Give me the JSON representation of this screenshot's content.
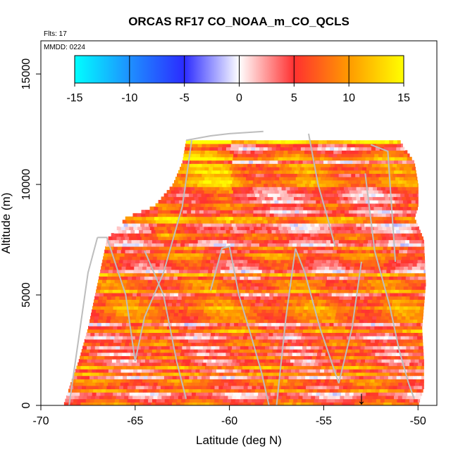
{
  "chart_data": {
    "type": "heatmap",
    "title": "ORCAS RF17 CO_NOAA_m_CO_QCLS",
    "subtitle": "Flts: 17",
    "annotation": "MMDD: 0224",
    "xlabel": "Latitude (deg N)",
    "ylabel": "Altitude (m)",
    "xlim": [
      -70,
      -49
    ],
    "ylim": [
      0,
      16500
    ],
    "x_ticks": [
      -70,
      -65,
      -60,
      -55,
      -50
    ],
    "y_ticks": [
      0,
      5000,
      10000,
      15000
    ],
    "grid": false,
    "colorbar": {
      "placement": "top-inside",
      "range": [
        -15,
        15
      ],
      "ticks": [
        -15,
        -10,
        -5,
        0,
        5,
        10,
        15
      ],
      "colors": [
        "#00ffff",
        "#1e90ff",
        "#2b2bff",
        "#ffffff",
        "#ff3030",
        "#ff9a00",
        "#ffff00"
      ]
    },
    "envelope": {
      "altitude": [
        0,
        800,
        2000,
        3500,
        5500,
        7500,
        8500,
        9000,
        10000,
        11000,
        12000
      ],
      "lat_min": [
        -68.8,
        -68.5,
        -68,
        -67.5,
        -67,
        -66.5,
        -65.5,
        -64,
        -63,
        -62.5,
        -62.3
      ],
      "lat_max": [
        -50,
        -49.7,
        -49.7,
        -49.8,
        -49.6,
        -49.7,
        -50.2,
        -50,
        -50,
        -50.2,
        -51
      ]
    },
    "profiles": [
      {
        "lat": [
          -68.5,
          -68,
          -67.5,
          -67
        ],
        "alt": [
          0,
          3000,
          6000,
          7600
        ]
      },
      {
        "lat": [
          -67,
          -66.5,
          -65.5,
          -65
        ],
        "alt": [
          7600,
          7600,
          5000,
          2000
        ]
      },
      {
        "lat": [
          -65,
          -64.5,
          -63.5,
          -62.5,
          -62
        ],
        "alt": [
          2000,
          4000,
          6000,
          9000,
          12000
        ]
      },
      {
        "lat": [
          -62.3,
          -61,
          -60,
          -58.2
        ],
        "alt": [
          12000,
          12200,
          12300,
          12400
        ]
      },
      {
        "lat": [
          -62.3,
          -62.8,
          -63.5,
          -64.5
        ],
        "alt": [
          300,
          2000,
          5000,
          7000
        ]
      },
      {
        "lat": [
          -61,
          -60.4,
          -60,
          -59.5
        ],
        "alt": [
          5200,
          7100,
          7200,
          5000
        ]
      },
      {
        "lat": [
          -59.5,
          -58.8,
          -58.3,
          -57.9
        ],
        "alt": [
          5000,
          3000,
          1500,
          0
        ]
      },
      {
        "lat": [
          -57.5,
          -57,
          -56.5
        ],
        "alt": [
          0,
          4000,
          7100
        ]
      },
      {
        "lat": [
          -56.5,
          -56,
          -55.2,
          -54.2
        ],
        "alt": [
          7100,
          6000,
          3500,
          1000
        ]
      },
      {
        "lat": [
          -54.2,
          -53.5,
          -53
        ],
        "alt": [
          1000,
          3500,
          6500
        ]
      },
      {
        "lat": [
          -55.8,
          -55.3,
          -54.8,
          -54.4
        ],
        "alt": [
          12300,
          10000,
          8500,
          7200
        ]
      },
      {
        "lat": [
          -52.8,
          -52.3,
          -51.5,
          -51
        ],
        "alt": [
          10500,
          7000,
          4500,
          2500
        ]
      },
      {
        "lat": [
          -51,
          -50.5,
          -50.2
        ],
        "alt": [
          2500,
          1000,
          300
        ]
      },
      {
        "lat": [
          -52.5,
          -51.6,
          -51.2
        ],
        "alt": [
          11800,
          11500,
          6500
        ]
      }
    ],
    "marker": {
      "lat": -53,
      "alt": 700,
      "symbol": "↓"
    }
  }
}
